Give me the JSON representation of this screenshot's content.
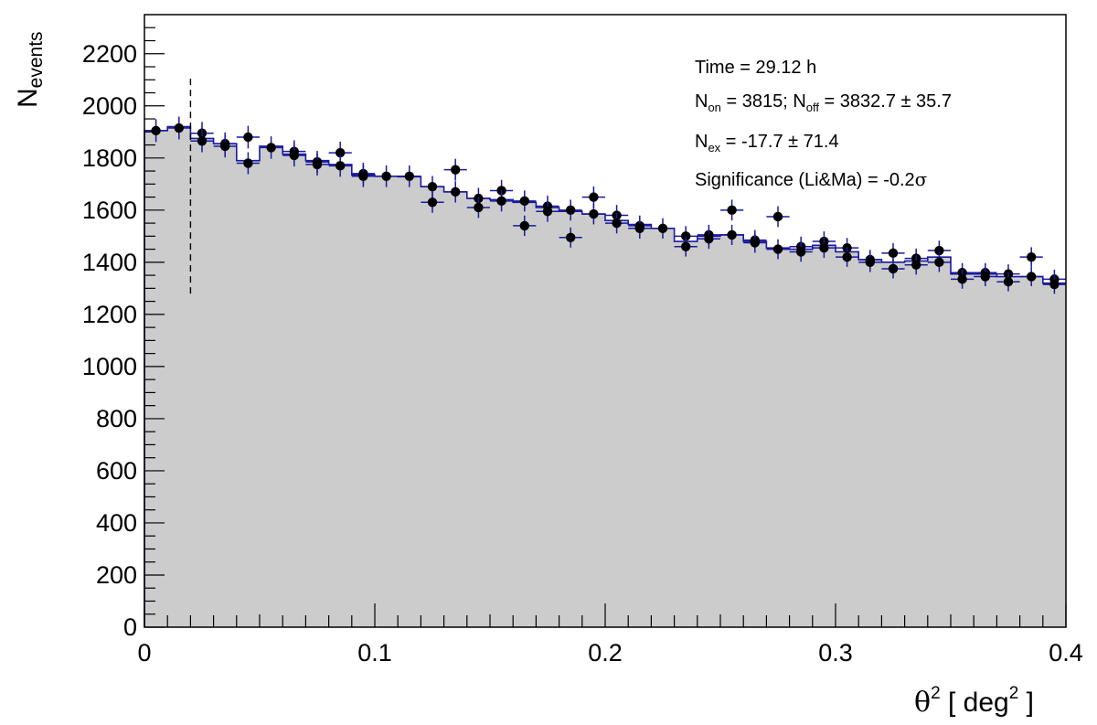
{
  "chart_data": {
    "type": "histogram",
    "xlabel": "θ² [ deg² ]",
    "ylabel": "N_events",
    "xlim": [
      0,
      0.4
    ],
    "ylim": [
      0,
      2350
    ],
    "grid": false,
    "x_ticks": [
      "0",
      "0.1",
      "0.2",
      "0.3",
      "0.4"
    ],
    "y_ticks": [
      "0",
      "200",
      "400",
      "600",
      "800",
      "1000",
      "1200",
      "1400",
      "1600",
      "1800",
      "2000",
      "2200"
    ],
    "bin_width": 0.01,
    "cut_line": {
      "x": 0.02,
      "y_range": [
        1280,
        2110
      ]
    },
    "stats": {
      "time": "Time = 29.12 h",
      "non_prefix": "N",
      "non_sub": "on",
      "non_value": " = 3815; ",
      "noff_prefix": "N",
      "noff_sub": "off",
      "noff_value": " = 3832.7 ± 35.7",
      "nex_prefix": "N",
      "nex_sub": "ex",
      "nex_value": " = -17.7 ± 71.4",
      "significance_text": "Significance (Li&Ma) = -0.2",
      "significance_unit": "σ"
    },
    "series": [
      {
        "kind": "off-histogram",
        "fill": "#cccccc",
        "line": "#1a1aa0",
        "values": [
          1905,
          1920,
          1875,
          1855,
          1790,
          1845,
          1815,
          1790,
          1775,
          1735,
          1730,
          1728,
          1690,
          1670,
          1645,
          1640,
          1630,
          1610,
          1595,
          1585,
          1560,
          1545,
          1530,
          1480,
          1500,
          1505,
          1480,
          1455,
          1450,
          1465,
          1440,
          1410,
          1400,
          1405,
          1420,
          1355,
          1355,
          1345,
          1345,
          1320
        ]
      },
      {
        "kind": "on-points-a",
        "color": "#000000",
        "values": [
          1905,
          1915,
          1895,
          1855,
          1880,
          1840,
          1825,
          1785,
          1820,
          1740,
          1730,
          1730,
          1690,
          1755,
          1645,
          1675,
          1635,
          1615,
          1600,
          1650,
          1580,
          1540,
          1530,
          1500,
          1505,
          1600,
          1485,
          1575,
          1460,
          1480,
          1455,
          1410,
          1435,
          1415,
          1445,
          1360,
          1360,
          1355,
          1420,
          1335
        ]
      },
      {
        "kind": "on-points-b",
        "color": "#000000",
        "values": [
          null,
          null,
          1865,
          1845,
          1780,
          null,
          1810,
          1775,
          1770,
          1730,
          null,
          null,
          1630,
          1670,
          1610,
          1635,
          1540,
          1595,
          1495,
          1585,
          1550,
          1530,
          null,
          1460,
          1490,
          1505,
          1475,
          1450,
          1440,
          1455,
          1420,
          1400,
          1375,
          1390,
          1400,
          1335,
          1345,
          1325,
          1345,
          1315
        ]
      }
    ]
  }
}
